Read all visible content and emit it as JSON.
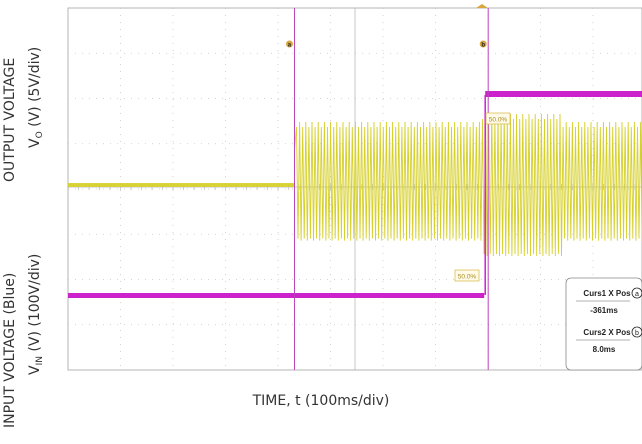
{
  "chart_data": {
    "type": "line",
    "title": "",
    "xlabel": "TIME, t (100ms/div)",
    "ylabels": {
      "output_title": "OUTPUT VOLTAGE",
      "output_units": "(V) (5V/div)",
      "output_symbol": "V",
      "output_subscript": "O",
      "input_title": "INPUT VOLTAGE (Blue)",
      "input_units": "(V) (100V/div)",
      "input_symbol": "V",
      "input_subscript": "IN"
    },
    "grid": true,
    "series": [
      {
        "name": "",
        "color": "#d6d02a",
        "x": [
          -0.5,
          -0.361,
          -0.361,
          0.008,
          0.05,
          0.3,
          0.35
        ],
        "y_desc": "output voltage: flat, then burst oscillation after cursor 1",
        "y": [
          0,
          0,
          3.2,
          3.2,
          3.0,
          3.2,
          3.2
        ]
      },
      {
        "name": "",
        "color": "#cc22cc",
        "x": [
          -0.5,
          0.008,
          0.008,
          0.35
        ],
        "y": [
          -1.1,
          -1.1,
          0.95,
          0.95
        ]
      }
    ],
    "cursors": [
      {
        "label": "a",
        "x": -0.361
      },
      {
        "label": "b",
        "x": 0.008
      }
    ],
    "markers": [
      "50.0%",
      "50.0%"
    ],
    "readout": {
      "curs1_title": "Curs1 X Pos",
      "curs1_badge": "a",
      "curs1_value": "-361ms",
      "curs2_title": "Curs2 X Pos",
      "curs2_badge": "b",
      "curs2_value": "8.0ms"
    }
  }
}
